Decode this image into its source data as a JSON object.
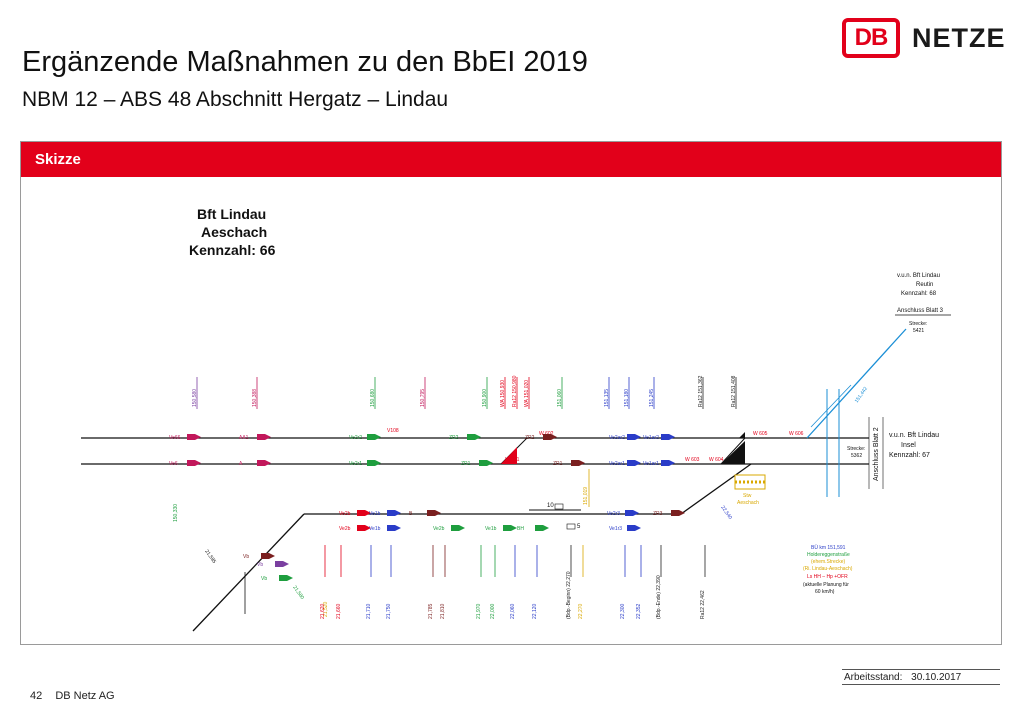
{
  "header": {
    "title": "Ergänzende Maßnahmen zu den BbEI 2019",
    "subtitle": "NBM 12 – ABS 48 Abschnitt Hergatz – Lindau",
    "logo_db": "DB",
    "logo_netze": "NETZE"
  },
  "panel": {
    "label": "Skizze"
  },
  "station": {
    "name_line1": "Bft Lindau",
    "name_line2": "Aeschach",
    "kennzahl": "Kennzahl: 66"
  },
  "right_top": {
    "line1": "v.u.n. Bft Lindau",
    "line2": "Reutin",
    "line3": "Kennzahl: 68",
    "anschluss": "Anschluss Blatt 3",
    "strecke_label": "Strecke:",
    "strecke_nr": "5421"
  },
  "right_mid": {
    "line1": "v.u.n. Bft Lindau",
    "line2": "Insel",
    "line3": "Kennzahl: 67",
    "vertical": "Anschluss Blatt 2",
    "strecke_label": "Strecke:",
    "strecke_nr": "5362"
  },
  "blue_note": {
    "line1": "BÜ km 151,591",
    "line2": "Holdereggenstraße",
    "line3": "(ehem.Strecke)",
    "line4": "(Ri. Lindau-Aeschach)",
    "line5": "Ls HH – Hp +OFR",
    "line6": "(aktuelle Planung für",
    "line7": "60 km/h)"
  },
  "sta_label": {
    "line1": "Stw",
    "line2": "Aeschach"
  },
  "km_top": [
    {
      "label": "150,580",
      "color": "#7a3fa0"
    },
    {
      "label": "150,388",
      "color": "#c2185b"
    },
    {
      "label": "150,680",
      "color": "#1e9e3e"
    },
    {
      "label": "150,795",
      "color": "#c2185b"
    },
    {
      "label": "150,900",
      "color": "#1e9e3e"
    },
    {
      "label": "WA 150,930",
      "color": "#e2001a"
    },
    {
      "label": "Ra12 150,980",
      "color": "#e2001a"
    },
    {
      "label": "WA 151,020",
      "color": "#e2001a"
    },
    {
      "label": "151,060",
      "color": "#1e9e3e"
    },
    {
      "label": "151,135",
      "color": "#2a3cc8"
    },
    {
      "label": "151,180",
      "color": "#2a3cc8"
    },
    {
      "label": "151,245",
      "color": "#2a3cc8"
    },
    {
      "label": "Ra12 151,362",
      "color": "#222222"
    },
    {
      "label": "Ra12 151,408",
      "color": "#222222"
    }
  ],
  "km_bottom": [
    {
      "label": "21,620",
      "color": "#e2001a"
    },
    {
      "label": "21,660",
      "color": "#e2001a"
    },
    {
      "label": "21,710",
      "color": "#2a3cc8"
    },
    {
      "label": "21,750",
      "color": "#2a3cc8"
    },
    {
      "label": "21,785",
      "color": "#7a1f1f"
    },
    {
      "label": "21,810",
      "color": "#7a1f1f"
    },
    {
      "label": "21,970",
      "color": "#1e9e3e"
    },
    {
      "label": "22,000",
      "color": "#1e9e3e"
    },
    {
      "label": "22,060",
      "color": "#2a3cc8"
    },
    {
      "label": "22,120",
      "color": "#2a3cc8"
    },
    {
      "label": "(Bdp.-Beginn) 22,270",
      "color": "#222222"
    },
    {
      "label": "22,270",
      "color": "#d9a800"
    },
    {
      "label": "22,300",
      "color": "#2a3cc8"
    },
    {
      "label": "22,352",
      "color": "#2a3cc8"
    },
    {
      "label": "(Bdp.-Ende) 22,390",
      "color": "#222222"
    },
    {
      "label": "Ra12 22,462",
      "color": "#222222"
    }
  ],
  "misc_labels": {
    "left_km": "150,330",
    "diag1": "21,595",
    "diag2": "21,580",
    "diag3": "21,520",
    "right_diag": "22,540",
    "blue_diag": "151,442",
    "vert_km": "151,019",
    "w606": "W 606",
    "w605": "W 605",
    "w604": "W 604",
    "w603": "W 603",
    "w601": "W 601",
    "w602": "W 602",
    "g10": "10",
    "g5": "5",
    "v108": "V108"
  },
  "signals": [
    {
      "label": "Ve66",
      "color": "#c2185b"
    },
    {
      "label": "AA1",
      "color": "#c2185b"
    },
    {
      "label": "Ve6",
      "color": "#c2185b"
    },
    {
      "label": "A",
      "color": "#c2185b"
    },
    {
      "label": "Ve2r2",
      "color": "#1e9e3e"
    },
    {
      "label": "Ve2r1",
      "color": "#1e9e3e"
    },
    {
      "label": "ZR2",
      "color": "#1e9e3e"
    },
    {
      "label": "ZR1",
      "color": "#1e9e3e"
    },
    {
      "label": "ZR2",
      "color": "#7a1f1f"
    },
    {
      "label": "ZR1",
      "color": "#7a1f1f"
    },
    {
      "label": "Ve2ar2",
      "color": "#2a3cc8"
    },
    {
      "label": "Ve1ar2",
      "color": "#2a3cc8"
    },
    {
      "label": "Ve2ar1",
      "color": "#2a3cc8"
    },
    {
      "label": "Ve1ar1",
      "color": "#2a3cc8"
    },
    {
      "label": "Ve2b",
      "color": "#e2001a"
    },
    {
      "label": "Ve1b",
      "color": "#2a3cc8"
    },
    {
      "label": "B",
      "color": "#7a1f1f"
    },
    {
      "label": "Ve2b",
      "color": "#e2001a"
    },
    {
      "label": "Ve1b",
      "color": "#2a3cc8"
    },
    {
      "label": "Ve2b",
      "color": "#1e9e3e"
    },
    {
      "label": "Ve1b",
      "color": "#1e9e3e"
    },
    {
      "label": "BH",
      "color": "#1e9e3e"
    },
    {
      "label": "Ve2r3",
      "color": "#2a3cc8"
    },
    {
      "label": "Ve1r3",
      "color": "#2a3cc8"
    },
    {
      "label": "ZR3",
      "color": "#7a1f1f"
    },
    {
      "label": "Vb",
      "color": "#7a1f1f"
    },
    {
      "label": "Vb",
      "color": "#7a3fa0"
    },
    {
      "label": "Vb",
      "color": "#1e9e3e"
    }
  ],
  "footer": {
    "page": "42",
    "company": "DB Netz AG",
    "stand_label": "Arbeitsstand:",
    "stand_date": "30.10.2017"
  }
}
